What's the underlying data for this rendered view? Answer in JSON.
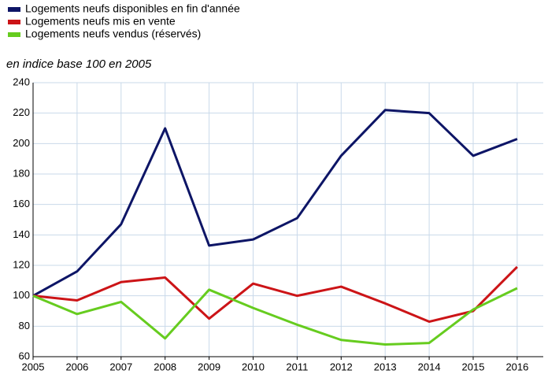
{
  "chart_data": {
    "type": "line",
    "subtitle": "en indice base 100 en 2005",
    "categories": [
      "2005",
      "2006",
      "2007",
      "2008",
      "2009",
      "2010",
      "2011",
      "2012",
      "2013",
      "2014",
      "2015",
      "2016"
    ],
    "series": [
      {
        "name": "Logements neufs disponibles en fin d'année",
        "color": "#0d1566",
        "values": [
          100,
          116,
          147,
          210,
          133,
          137,
          151,
          192,
          222,
          220,
          192,
          203
        ]
      },
      {
        "name": "Logements neufs mis en vente",
        "color": "#cc1417",
        "values": [
          100,
          97,
          109,
          112,
          85,
          108,
          100,
          106,
          95,
          83,
          90,
          119
        ]
      },
      {
        "name": "Logements neufs vendus (réservés)",
        "color": "#66cc1f",
        "values": [
          100,
          88,
          96,
          72,
          104,
          92,
          81,
          71,
          68,
          69,
          91,
          105
        ]
      }
    ],
    "ylim": [
      60,
      240
    ],
    "yticks": [
      60,
      80,
      100,
      120,
      140,
      160,
      180,
      200,
      220,
      240
    ],
    "grid": true,
    "legend": "top-left"
  }
}
